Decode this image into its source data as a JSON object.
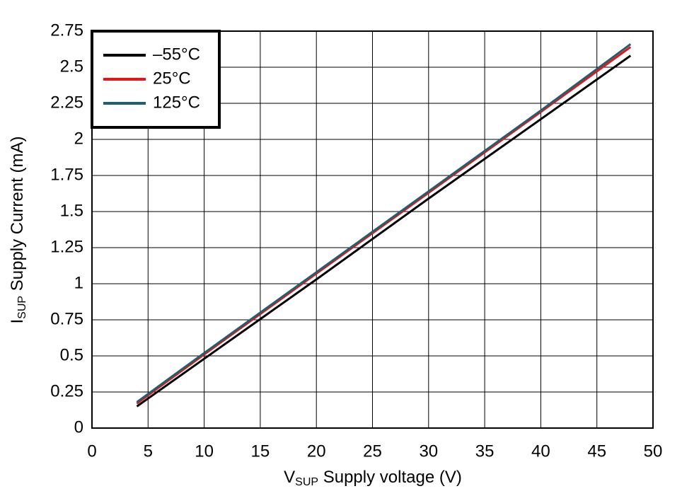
{
  "chart_data": {
    "type": "line",
    "xlabel": {
      "main": "V",
      "sub": "SUP",
      "rest": " Supply voltage (V)"
    },
    "ylabel": {
      "main": "I",
      "sub": "SUP",
      "rest": " Supply Current (mA)"
    },
    "x": [
      4,
      10,
      20,
      30,
      40,
      48
    ],
    "series": [
      {
        "name": "–55°C",
        "color": "#000000",
        "values": [
          0.15,
          0.48,
          1.03,
          1.59,
          2.14,
          2.58
        ]
      },
      {
        "name": "25°C",
        "color": "#e8141c",
        "values": [
          0.17,
          0.51,
          1.07,
          1.63,
          2.19,
          2.64
        ]
      },
      {
        "name": "125°C",
        "color": "#1f5f6e",
        "values": [
          0.18,
          0.52,
          1.08,
          1.64,
          2.2,
          2.66
        ]
      }
    ],
    "xlim": [
      0,
      50
    ],
    "xticks": [
      0,
      5,
      10,
      15,
      20,
      25,
      30,
      35,
      40,
      45,
      50
    ],
    "ylim": [
      0,
      2.75
    ],
    "yticks": [
      0,
      0.25,
      0.5,
      0.75,
      1,
      1.25,
      1.5,
      1.75,
      2,
      2.25,
      2.5,
      2.75
    ],
    "grid": true,
    "legend": "upper left"
  }
}
